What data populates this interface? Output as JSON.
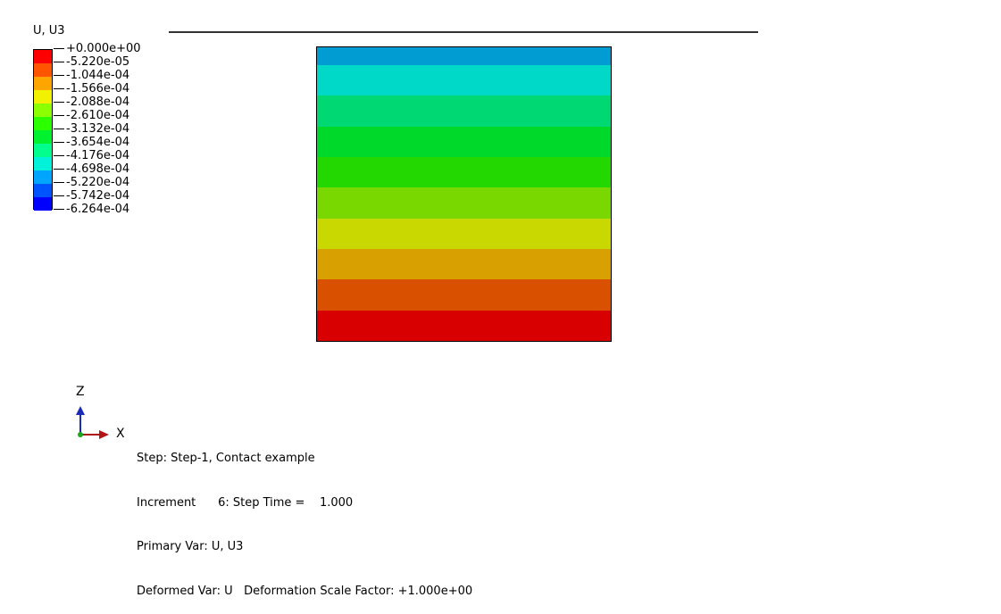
{
  "legend": {
    "title": "U, U3",
    "colors": [
      "#ff0000",
      "#ff5400",
      "#ffa500",
      "#f2f200",
      "#8cff00",
      "#2bff00",
      "#00f22e",
      "#00ff8c",
      "#00f2d8",
      "#00a5ff",
      "#0054ff",
      "#0000ff"
    ],
    "labels": [
      "+0.000e+00",
      "-5.220e-05",
      "-1.044e-04",
      "-1.566e-04",
      "-2.088e-04",
      "-2.610e-04",
      "-3.132e-04",
      "-3.654e-04",
      "-4.176e-04",
      "-4.698e-04",
      "-5.220e-04",
      "-5.742e-04",
      "-6.264e-04"
    ]
  },
  "contour": {
    "band_colors": [
      "#009cd2",
      "#00d8c8",
      "#00d873",
      "#00d82a",
      "#22d800",
      "#78d800",
      "#c8d800",
      "#d8a000",
      "#d85000",
      "#d80000"
    ],
    "outline_color": "#000000"
  },
  "triad": {
    "z_label": "Z",
    "x_label": "X",
    "z_color": "#1a2bb8",
    "x_color": "#b01616",
    "y_color": "#1aa81a"
  },
  "info": {
    "step_line": "Step: Step-1, Contact example",
    "increment_line": "Increment      6: Step Time =    1.000",
    "primary_var_line": "Primary Var: U, U3",
    "deformed_var_line": "Deformed Var: U   Deformation Scale Factor: +1.000e+00"
  }
}
